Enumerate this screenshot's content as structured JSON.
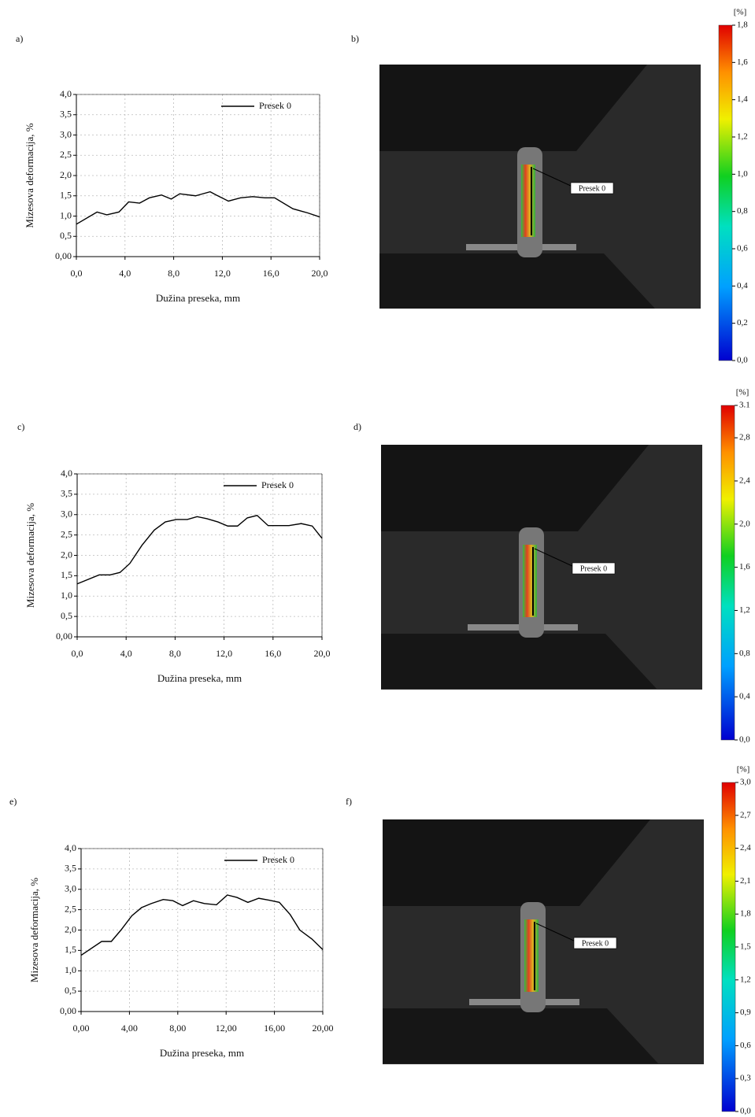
{
  "chart_data": [
    {
      "type": "line",
      "panel": "a)",
      "xlabel": "Dužina preseka, mm",
      "ylabel": "Mizesova deformacija, %",
      "x": [
        0,
        1.7,
        2.5,
        3.5,
        4.3,
        5.2,
        6,
        7,
        7.8,
        8.5,
        9.8,
        11,
        11.5,
        12.5,
        13.5,
        14.5,
        15.5,
        16.3,
        17.8,
        19,
        20
      ],
      "series": [
        {
          "name": "Presek 0",
          "color": "#000000",
          "values": [
            0.8,
            1.1,
            1.03,
            1.1,
            1.35,
            1.32,
            1.45,
            1.52,
            1.42,
            1.55,
            1.5,
            1.6,
            1.52,
            1.37,
            1.45,
            1.48,
            1.45,
            1.45,
            1.18,
            1.08,
            0.98
          ]
        }
      ],
      "xlim": [
        0,
        20
      ],
      "xticks": [
        {
          "value": 0,
          "label": "0,0"
        },
        {
          "value": 4,
          "label": "4,0"
        },
        {
          "value": 8,
          "label": "8,0"
        },
        {
          "value": 12,
          "label": "12,0"
        },
        {
          "value": 16,
          "label": "16,0"
        },
        {
          "value": 20,
          "label": "20,0"
        }
      ],
      "ylim": [
        0,
        4
      ],
      "yticks": [
        {
          "value": 0,
          "label": "0,00"
        },
        {
          "value": 0.5,
          "label": "0,5"
        },
        {
          "value": 1,
          "label": "1,0"
        },
        {
          "value": 1.5,
          "label": "1,5"
        },
        {
          "value": 2,
          "label": "2,0"
        },
        {
          "value": 2.5,
          "label": "2,5"
        },
        {
          "value": 3,
          "label": "3,0"
        },
        {
          "value": 3.5,
          "label": "3,5"
        },
        {
          "value": 4,
          "label": "4,0"
        }
      ],
      "grid": true,
      "legend": "upper right"
    },
    {
      "type": "line",
      "panel": "c)",
      "xlabel": "Dužina preseka, mm",
      "ylabel": "Mizesova deformacija, %",
      "x": [
        0,
        1.8,
        2.7,
        3.5,
        4.3,
        5.3,
        6.3,
        7.2,
        8.1,
        9,
        9.8,
        10.6,
        11.5,
        12.3,
        13.1,
        13.9,
        14.7,
        15.6,
        16.4,
        17.3,
        18.3,
        19.2,
        20
      ],
      "series": [
        {
          "name": "Presek 0",
          "color": "#000000",
          "values": [
            1.3,
            1.52,
            1.52,
            1.58,
            1.8,
            2.25,
            2.62,
            2.82,
            2.88,
            2.88,
            2.95,
            2.9,
            2.82,
            2.72,
            2.72,
            2.92,
            2.98,
            2.73,
            2.73,
            2.73,
            2.78,
            2.72,
            2.42
          ]
        }
      ],
      "xlim": [
        0,
        20
      ],
      "xticks": [
        {
          "value": 0,
          "label": "0,0"
        },
        {
          "value": 4,
          "label": "4,0"
        },
        {
          "value": 8,
          "label": "8,0"
        },
        {
          "value": 12,
          "label": "12,0"
        },
        {
          "value": 16,
          "label": "16,0"
        },
        {
          "value": 20,
          "label": "20,0"
        }
      ],
      "ylim": [
        0,
        4
      ],
      "yticks": [
        {
          "value": 0,
          "label": "0,00"
        },
        {
          "value": 0.5,
          "label": "0,5"
        },
        {
          "value": 1,
          "label": "1,0"
        },
        {
          "value": 1.5,
          "label": "1,5"
        },
        {
          "value": 2,
          "label": "2,0"
        },
        {
          "value": 2.5,
          "label": "2,5"
        },
        {
          "value": 3,
          "label": "3,0"
        },
        {
          "value": 3.5,
          "label": "3,5"
        },
        {
          "value": 4,
          "label": "4,0"
        }
      ],
      "grid": true,
      "legend": "upper right"
    },
    {
      "type": "line",
      "panel": "e)",
      "xlabel": "Dužina preseka, mm",
      "ylabel": "Mizesova deformacija, %",
      "x": [
        0,
        1.7,
        2.5,
        3.3,
        4.2,
        5,
        5.8,
        6.8,
        7.6,
        8.4,
        9.3,
        10.2,
        11.2,
        12.1,
        12.9,
        13.8,
        14.7,
        15.6,
        16.4,
        17.3,
        18.1,
        19.1,
        20
      ],
      "series": [
        {
          "name": "Presek 0",
          "color": "#000000",
          "values": [
            1.38,
            1.72,
            1.72,
            2.0,
            2.35,
            2.55,
            2.65,
            2.75,
            2.72,
            2.6,
            2.72,
            2.65,
            2.62,
            2.86,
            2.8,
            2.68,
            2.78,
            2.73,
            2.68,
            2.38,
            2.0,
            1.78,
            1.52
          ]
        }
      ],
      "xlim": [
        0,
        20
      ],
      "xticks": [
        {
          "value": 0,
          "label": "0,00"
        },
        {
          "value": 4,
          "label": "4,00"
        },
        {
          "value": 8,
          "label": "8,00"
        },
        {
          "value": 12,
          "label": "12,00"
        },
        {
          "value": 16,
          "label": "16,00"
        },
        {
          "value": 20,
          "label": "20,00"
        }
      ],
      "ylim": [
        0,
        4
      ],
      "yticks": [
        {
          "value": 0,
          "label": "0,00"
        },
        {
          "value": 0.5,
          "label": "0,5"
        },
        {
          "value": 1,
          "label": "1,0"
        },
        {
          "value": 1.5,
          "label": "1,5"
        },
        {
          "value": 2,
          "label": "2,0"
        },
        {
          "value": 2.5,
          "label": "2,5"
        },
        {
          "value": 3,
          "label": "3,0"
        },
        {
          "value": 3.5,
          "label": "3,5"
        },
        {
          "value": 4,
          "label": "4,0"
        }
      ],
      "grid": true,
      "legend": "upper right"
    }
  ],
  "images": [
    {
      "panel": "b)",
      "annotation": "Presek 0",
      "colorbar": {
        "unit": "[%]",
        "lim": [
          0,
          1.8
        ],
        "ticks": [
          {
            "value": 0,
            "label": "0,0"
          },
          {
            "value": 0.2,
            "label": "0,2"
          },
          {
            "value": 0.4,
            "label": "0,4"
          },
          {
            "value": 0.6,
            "label": "0,6"
          },
          {
            "value": 0.8,
            "label": "0,8"
          },
          {
            "value": 1.0,
            "label": "1,0"
          },
          {
            "value": 1.2,
            "label": "1,2"
          },
          {
            "value": 1.4,
            "label": "1,4"
          },
          {
            "value": 1.6,
            "label": "1,6"
          },
          {
            "value": 1.8,
            "label": "1,8"
          }
        ]
      }
    },
    {
      "panel": "d)",
      "annotation": "Presek 0",
      "colorbar": {
        "unit": "[%]",
        "lim": [
          0,
          3.1
        ],
        "ticks": [
          {
            "value": 0,
            "label": "0,0"
          },
          {
            "value": 0.4,
            "label": "0,4"
          },
          {
            "value": 0.8,
            "label": "0,8"
          },
          {
            "value": 1.2,
            "label": "1,2"
          },
          {
            "value": 1.6,
            "label": "1,6"
          },
          {
            "value": 2.0,
            "label": "2,0"
          },
          {
            "value": 2.4,
            "label": "2,4"
          },
          {
            "value": 2.8,
            "label": "2,8"
          },
          {
            "value": 3.1,
            "label": "3.1"
          }
        ]
      }
    },
    {
      "panel": "f)",
      "annotation": "Presek 0",
      "colorbar": {
        "unit": "[%]",
        "lim": [
          0,
          3.0
        ],
        "ticks": [
          {
            "value": 0,
            "label": "0,0"
          },
          {
            "value": 0.3,
            "label": "0,3"
          },
          {
            "value": 0.6,
            "label": "0,6"
          },
          {
            "value": 0.9,
            "label": "0,9"
          },
          {
            "value": 1.2,
            "label": "1,2"
          },
          {
            "value": 1.5,
            "label": "1,5"
          },
          {
            "value": 1.8,
            "label": "1,8"
          },
          {
            "value": 2.1,
            "label": "2,1"
          },
          {
            "value": 2.4,
            "label": "2,4"
          },
          {
            "value": 2.7,
            "label": "2,7"
          },
          {
            "value": 3.0,
            "label": "3,0"
          }
        ]
      }
    }
  ]
}
